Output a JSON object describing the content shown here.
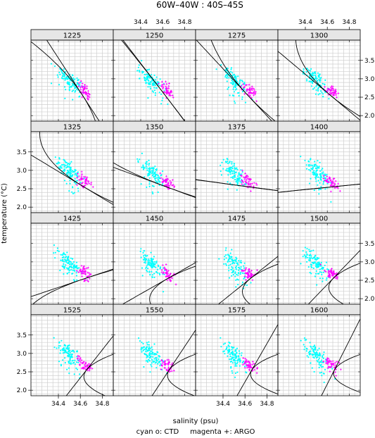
{
  "chart_data": {
    "type": "scatter",
    "title": "60W–40W : 40S–45S",
    "xlabel": "salinity (psu)",
    "ylabel": "temperature (°C)",
    "caption": "cyan o: CTD     magenta +: ARGO",
    "xlim": [
      34.15,
      34.9
    ],
    "ylim": [
      1.85,
      4.05
    ],
    "x_ticks": [
      "34.4",
      "34.6",
      "34.8"
    ],
    "y_ticks": [
      "2.0",
      "2.5",
      "3.0",
      "3.5"
    ],
    "grid": true,
    "layout": {
      "rows": 4,
      "cols": 4
    },
    "panels": [
      "1225",
      "1250",
      "1275",
      "1300",
      "1325",
      "1350",
      "1375",
      "1400",
      "1425",
      "1450",
      "1475",
      "1500",
      "1525",
      "1550",
      "1575",
      "1600"
    ],
    "series": [
      {
        "label": "CTD",
        "marker": "o",
        "color": "#00ffff"
      },
      {
        "label": "ARGO",
        "marker": "+",
        "color": "#ff00ff"
      }
    ]
  }
}
